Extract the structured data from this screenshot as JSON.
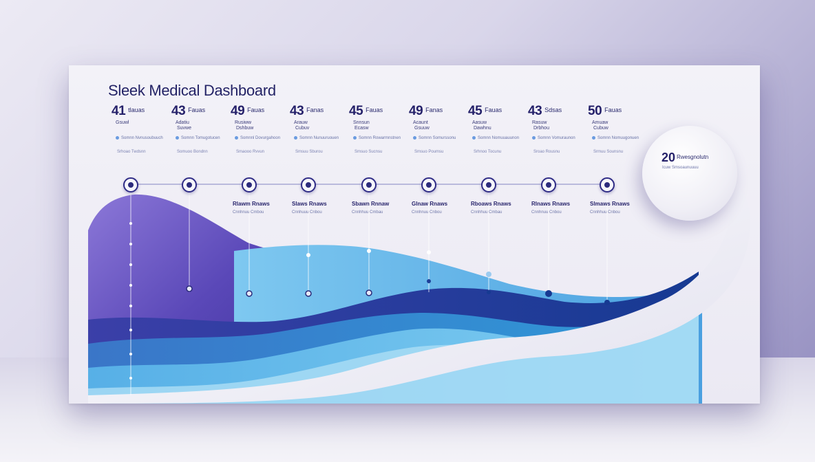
{
  "dashboard": {
    "title": "Sleek Medical Dashboard",
    "metrics": [
      {
        "value": "41",
        "unit": "tlauas",
        "sub1": "Gsuwl",
        "sub2": "",
        "detail": "Somnn Nvnusoubuuch",
        "detail2": "Srhoao Twdsnn"
      },
      {
        "value": "43",
        "unit": "Fauas",
        "sub1": "Adatiu",
        "sub2": "Suvwe",
        "detail": "Somnn Tomugotucen",
        "detail2": "Somuoo Bondnn"
      },
      {
        "value": "49",
        "unit": "Fauas",
        "sub1": "Rusiww",
        "sub2": "Dshbuw",
        "detail": "Somnnl Dovurgahoon",
        "detail2": "Smaooo Rvvun"
      },
      {
        "value": "43",
        "unit": "Fanas",
        "sub1": "Arauw",
        "sub2": "Cubuv",
        "detail": "Somnn Nunuuruouen",
        "detail2": "Smsuu Sburou"
      },
      {
        "value": "45",
        "unit": "Fauas",
        "sub1": "Snnsun",
        "sub2": "Ecasw",
        "detail": "Somnn Rowarmnstnen",
        "detail2": "Smsuo Sucnsu"
      },
      {
        "value": "49",
        "unit": "Fanas",
        "sub1": "Acaunt",
        "sub2": "Gsuuw",
        "detail": "Somnn Somurssonu",
        "detail2": "Smsuo Poumsu"
      },
      {
        "value": "45",
        "unit": "Fauas",
        "sub1": "Aasuw",
        "sub2": "Dawhnu",
        "detail": "Somnn Nomuuauunon",
        "detail2": "Srhnoo Tocunu"
      },
      {
        "value": "43",
        "unit": "Sdsas",
        "sub1": "Rasuw",
        "sub2": "Drbhou",
        "detail": "Somnn Vomuraunon",
        "detail2": "Sroao Rousnu"
      },
      {
        "value": "50",
        "unit": "Fauas",
        "sub1": "Amuaw",
        "sub2": "Cubuw",
        "detail": "Somnn Nomuugonuen",
        "detail2": "Srmuu Sounsnu"
      }
    ],
    "markers": [
      {
        "label": "Rlawm Rnaws",
        "sub": "Cnnhnuu Cmbou"
      },
      {
        "label": "Slaws Rnaws",
        "sub": "Cnnhuuu Cnbou"
      },
      {
        "label": "Sbawn Rnnaw",
        "sub": "Cnnhhuu Cmbau"
      },
      {
        "label": "Glnaw Rnaws",
        "sub": "Cnnhnuu Cnbou"
      },
      {
        "label": "Rboaws Rnaws",
        "sub": "Cnnhhuu Cmbau"
      },
      {
        "label": "Rlnaws Rnaws",
        "sub": "Cnnhnuu Cnbou"
      },
      {
        "label": "Slmaws Rnaws",
        "sub": "Cnnhhuu Cnbou"
      }
    ],
    "highlight": {
      "value": "20",
      "label": "Rwesgnolutn",
      "sub": "Icuw Smsoaunuuuu"
    }
  },
  "colors": {
    "deep_purple": "#4a3fa8",
    "indigo": "#2e3d9e",
    "sky_blue": "#5bb4e8",
    "title_navy": "#232366"
  }
}
